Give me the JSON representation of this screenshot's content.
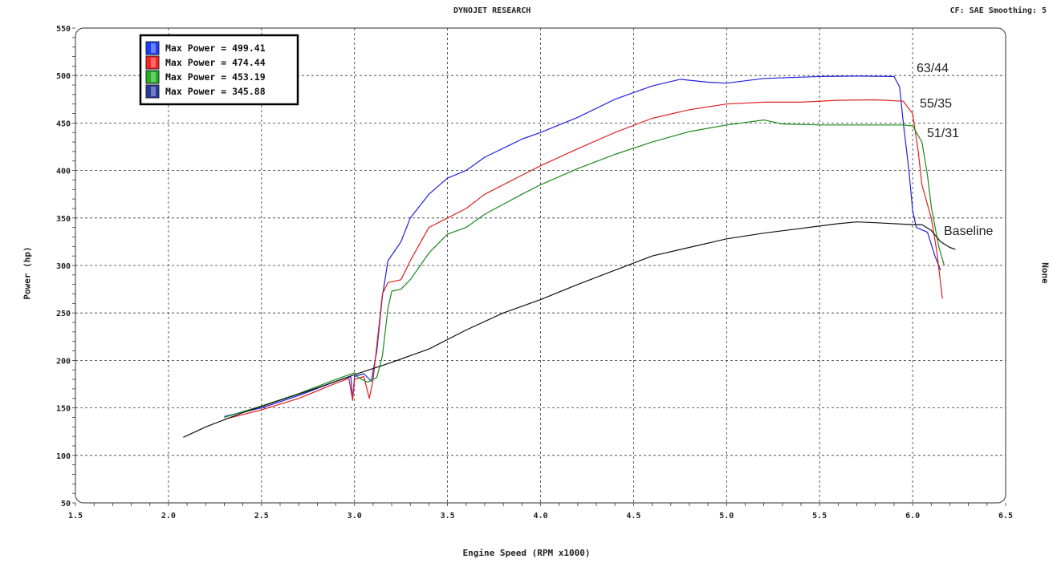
{
  "header": {
    "title": "DYNOJET RESEARCH",
    "cf_text": "CF: SAE  Smoothing: 5"
  },
  "right_axis_label": "None",
  "chart_data": {
    "type": "line",
    "title": "DYNOJET RESEARCH",
    "xlabel": "Engine Speed (RPM x1000)",
    "ylabel": "Power (hp)",
    "xlim": [
      1.5,
      6.5
    ],
    "ylim": [
      50,
      550
    ],
    "x_ticks": [
      "1.5",
      "2.0",
      "2.5",
      "3.0",
      "3.5",
      "4.0",
      "4.5",
      "5.0",
      "5.5",
      "6.0",
      "6.5"
    ],
    "y_ticks": [
      "50",
      "100",
      "150",
      "200",
      "250",
      "300",
      "350",
      "400",
      "450",
      "500",
      "550"
    ],
    "grid": true,
    "legend_position": "top-left",
    "legend": [
      "Max Power = 499.41",
      "Max Power = 474.44",
      "Max Power = 453.19",
      "Max Power = 345.88"
    ],
    "annotations": [
      "63/44",
      "55/35",
      "51/31",
      "Baseline"
    ],
    "series": [
      {
        "name": "63/44",
        "color": "#2020e0",
        "legend_color": "#1a3cff",
        "points": [
          [
            2.3,
            141
          ],
          [
            2.5,
            150
          ],
          [
            2.7,
            163
          ],
          [
            2.9,
            178
          ],
          [
            2.98,
            183
          ],
          [
            2.99,
            158
          ],
          [
            3.0,
            183
          ],
          [
            3.05,
            186
          ],
          [
            3.09,
            178
          ],
          [
            3.12,
            210
          ],
          [
            3.15,
            268
          ],
          [
            3.18,
            305
          ],
          [
            3.25,
            325
          ],
          [
            3.3,
            350
          ],
          [
            3.4,
            375
          ],
          [
            3.5,
            392
          ],
          [
            3.6,
            400
          ],
          [
            3.7,
            414
          ],
          [
            3.9,
            433
          ],
          [
            4.0,
            440
          ],
          [
            4.2,
            456
          ],
          [
            4.4,
            475
          ],
          [
            4.6,
            489
          ],
          [
            4.75,
            496
          ],
          [
            4.9,
            493
          ],
          [
            5.0,
            492
          ],
          [
            5.2,
            497
          ],
          [
            5.5,
            499
          ],
          [
            5.7,
            499.41
          ],
          [
            5.9,
            499
          ],
          [
            5.93,
            488
          ],
          [
            5.95,
            450
          ],
          [
            5.98,
            400
          ],
          [
            6.0,
            358
          ],
          [
            6.02,
            340
          ],
          [
            6.08,
            335
          ],
          [
            6.12,
            310
          ],
          [
            6.15,
            295
          ]
        ]
      },
      {
        "name": "55/35",
        "color": "#dd2020",
        "legend_color": "#ff2020",
        "points": [
          [
            2.3,
            138
          ],
          [
            2.5,
            148
          ],
          [
            2.7,
            160
          ],
          [
            2.9,
            176
          ],
          [
            2.97,
            181
          ],
          [
            2.99,
            158
          ],
          [
            3.0,
            180
          ],
          [
            3.05,
            183
          ],
          [
            3.08,
            160
          ],
          [
            3.1,
            180
          ],
          [
            3.15,
            270
          ],
          [
            3.18,
            282
          ],
          [
            3.25,
            285
          ],
          [
            3.3,
            305
          ],
          [
            3.4,
            340
          ],
          [
            3.5,
            350
          ],
          [
            3.6,
            360
          ],
          [
            3.7,
            375
          ],
          [
            3.9,
            395
          ],
          [
            4.0,
            405
          ],
          [
            4.2,
            423
          ],
          [
            4.4,
            440
          ],
          [
            4.6,
            455
          ],
          [
            4.8,
            464
          ],
          [
            5.0,
            470
          ],
          [
            5.2,
            472
          ],
          [
            5.4,
            472
          ],
          [
            5.6,
            474
          ],
          [
            5.8,
            474.44
          ],
          [
            5.95,
            473
          ],
          [
            6.0,
            460
          ],
          [
            6.03,
            420
          ],
          [
            6.05,
            385
          ],
          [
            6.1,
            350
          ],
          [
            6.13,
            315
          ],
          [
            6.16,
            265
          ]
        ]
      },
      {
        "name": "51/31",
        "color": "#1a8a1a",
        "legend_color": "#20b020",
        "points": [
          [
            2.3,
            140
          ],
          [
            2.5,
            152
          ],
          [
            2.7,
            165
          ],
          [
            2.9,
            180
          ],
          [
            3.0,
            187
          ],
          [
            3.02,
            182
          ],
          [
            3.07,
            177
          ],
          [
            3.12,
            182
          ],
          [
            3.15,
            205
          ],
          [
            3.18,
            255
          ],
          [
            3.2,
            273
          ],
          [
            3.25,
            275
          ],
          [
            3.3,
            285
          ],
          [
            3.4,
            313
          ],
          [
            3.5,
            333
          ],
          [
            3.6,
            340
          ],
          [
            3.7,
            354
          ],
          [
            3.9,
            375
          ],
          [
            4.0,
            385
          ],
          [
            4.2,
            402
          ],
          [
            4.4,
            417
          ],
          [
            4.6,
            430
          ],
          [
            4.8,
            441
          ],
          [
            5.0,
            448
          ],
          [
            5.2,
            453.19
          ],
          [
            5.3,
            449
          ],
          [
            5.5,
            448
          ],
          [
            5.7,
            448
          ],
          [
            5.95,
            448
          ],
          [
            6.0,
            447
          ],
          [
            6.05,
            430
          ],
          [
            6.08,
            395
          ],
          [
            6.1,
            362
          ],
          [
            6.14,
            320
          ],
          [
            6.17,
            300
          ]
        ]
      },
      {
        "name": "Baseline",
        "color": "#111111",
        "legend_color": "#2a3a9a",
        "points": [
          [
            2.08,
            119
          ],
          [
            2.2,
            130
          ],
          [
            2.4,
            145
          ],
          [
            2.6,
            158
          ],
          [
            2.8,
            171
          ],
          [
            3.0,
            185
          ],
          [
            3.2,
            198
          ],
          [
            3.4,
            212
          ],
          [
            3.6,
            232
          ],
          [
            3.8,
            250
          ],
          [
            4.0,
            264
          ],
          [
            4.2,
            280
          ],
          [
            4.4,
            295
          ],
          [
            4.6,
            310
          ],
          [
            4.8,
            319
          ],
          [
            5.0,
            328
          ],
          [
            5.2,
            334
          ],
          [
            5.4,
            339
          ],
          [
            5.6,
            344
          ],
          [
            5.7,
            345.88
          ],
          [
            5.8,
            345
          ],
          [
            6.0,
            343
          ],
          [
            6.05,
            343
          ],
          [
            6.1,
            337
          ],
          [
            6.15,
            325
          ],
          [
            6.2,
            319
          ],
          [
            6.23,
            317
          ]
        ]
      }
    ]
  }
}
